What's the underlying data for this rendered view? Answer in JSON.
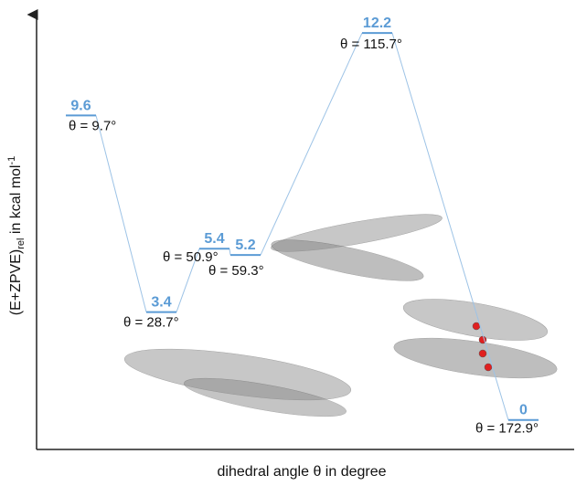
{
  "chart_data": {
    "type": "energy-levels",
    "categories": [
      "θ = 9.7°",
      "θ = 28.7°",
      "θ = 50.9°",
      "θ = 59.3°",
      "θ = 115.7°",
      "θ = 172.9°"
    ],
    "values": [
      9.6,
      3.4,
      5.4,
      5.2,
      12.2,
      0
    ],
    "color": "#5b9bd5",
    "connector_color": "#9dc3e6",
    "ylim": [
      -0.93,
      12.78
    ],
    "x_label": "dihedral angle θ in degree",
    "y_label": {
      "main": "(E+ZPVE)",
      "sub": "rel",
      "text": " in kcal mol",
      "sup": "-1"
    }
  }
}
